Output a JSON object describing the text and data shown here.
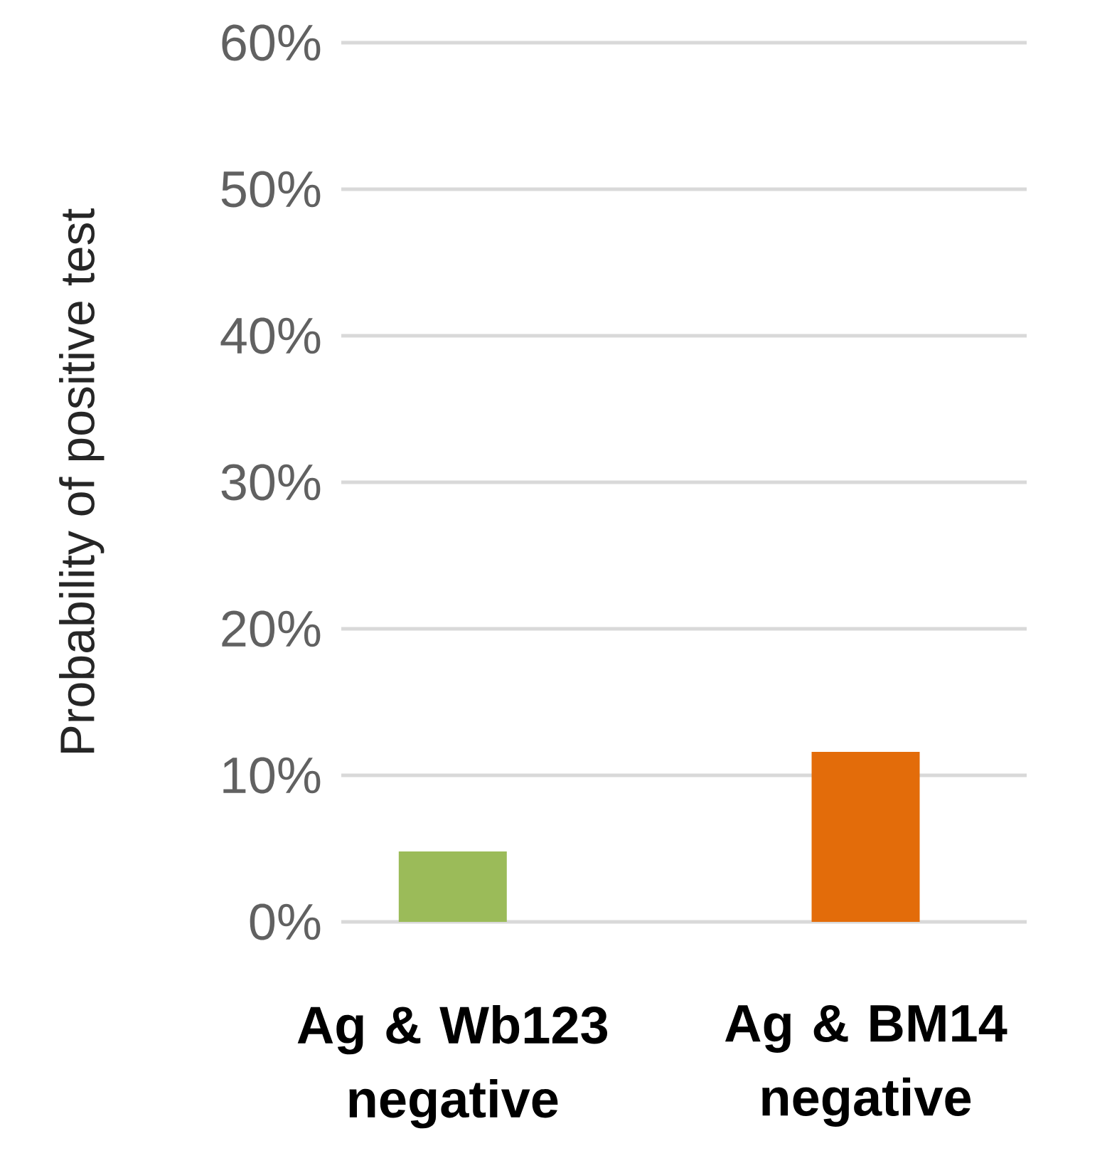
{
  "chart_data": {
    "type": "bar",
    "ylabel": "Probability of positive test",
    "categories": [
      "Ag & Wb123 negative",
      "Ag & BM14 negative"
    ],
    "values": [
      4.8,
      11.6
    ],
    "colors": [
      "#9bbb59",
      "#e36c0a"
    ],
    "ylim": [
      0,
      60
    ],
    "yticks": [
      {
        "value": 0,
        "label": "0%"
      },
      {
        "value": 10,
        "label": "10%"
      },
      {
        "value": 20,
        "label": "20%"
      },
      {
        "value": 30,
        "label": "30%"
      },
      {
        "value": 40,
        "label": "40%"
      },
      {
        "value": 50,
        "label": "50%"
      },
      {
        "value": 60,
        "label": "60%"
      }
    ],
    "grid": "y"
  }
}
